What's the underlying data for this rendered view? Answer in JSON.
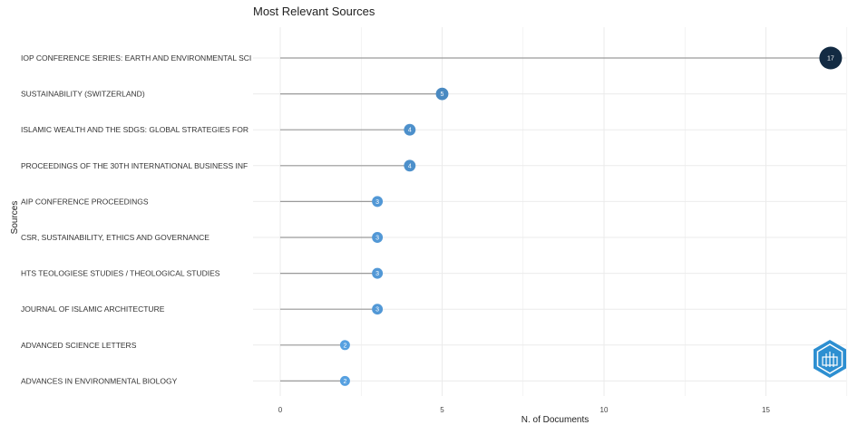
{
  "chart_data": {
    "type": "lollipop",
    "title": "Most Relevant Sources",
    "xlabel": "N. of Documents",
    "ylabel": "Sources",
    "xlim": [
      0,
      17.5
    ],
    "xticks": [
      0,
      5,
      10,
      15
    ],
    "grid": true,
    "categories": [
      "IOP CONFERENCE SERIES: EARTH AND ENVIRONMENTAL SCI",
      "SUSTAINABILITY (SWITZERLAND)",
      "ISLAMIC WEALTH AND THE SDGS: GLOBAL STRATEGIES FOR",
      "PROCEEDINGS OF THE 30TH INTERNATIONAL BUSINESS INF",
      "AIP CONFERENCE PROCEEDINGS",
      "CSR, SUSTAINABILITY, ETHICS AND GOVERNANCE",
      "HTS TEOLOGIESE STUDIES / THEOLOGICAL STUDIES",
      "JOURNAL OF ISLAMIC ARCHITECTURE",
      "ADVANCED SCIENCE LETTERS",
      "ADVANCES IN ENVIRONMENTAL BIOLOGY"
    ],
    "values": [
      17,
      5,
      4,
      4,
      3,
      3,
      3,
      3,
      2,
      2
    ],
    "colors": {
      "low": "#56a0e0",
      "high": "#132b43",
      "stem": "#9a9a9a",
      "grid": "#ebebeb"
    }
  },
  "logo": {
    "icon": "bibliometrix-logo-icon"
  }
}
